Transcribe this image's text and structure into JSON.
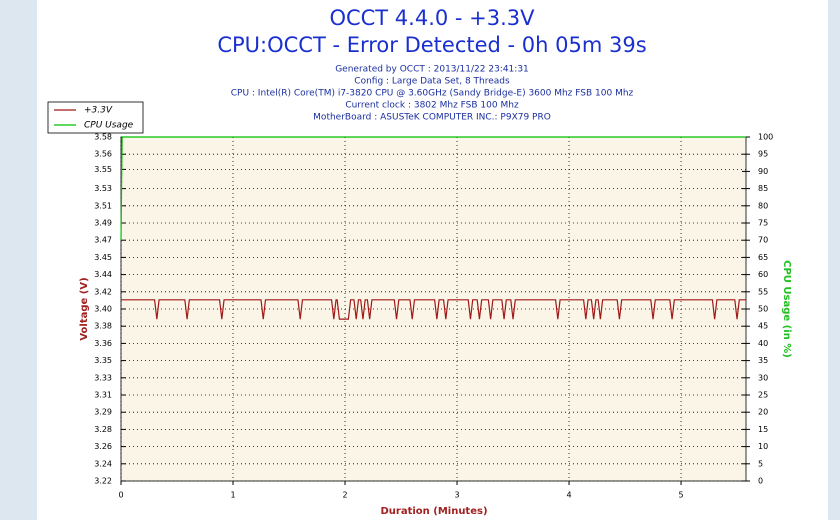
{
  "chart_data": {
    "type": "line",
    "title": "OCCT 4.4.0 - +3.3V",
    "subtitle": "CPU:OCCT - Error Detected - 0h 05m 39s",
    "details": [
      "Generated by OCCT : 2013/11/22 23:41:31",
      "Config : Large Data Set, 8 Threads",
      "CPU : Intel(R) Core(TM) i7-3820 CPU @ 3.60GHz (Sandy Bridge-E) 3600 Mhz FSB 100 Mhz",
      "Current clock : 3802 Mhz FSB 100 Mhz",
      "MotherBoard : ASUSTeK COMPUTER INC.: P9X79 PRO"
    ],
    "x_label": "Duration (Minutes)",
    "y_label": "Voltage (V)",
    "y2_label": "CPU Usage (in %)",
    "xlim": [
      0,
      5.58
    ],
    "xticks": [
      0,
      1,
      2,
      3,
      4,
      5
    ],
    "ylim": [
      3.2225,
      3.5785
    ],
    "yticks": [
      {
        "value": 3.2225,
        "label": "3.22"
      },
      {
        "value": 3.2403,
        "label": "3.24"
      },
      {
        "value": 3.2581,
        "label": "3.26"
      },
      {
        "value": 3.2759,
        "label": "3.28"
      },
      {
        "value": 3.2937,
        "label": "3.29"
      },
      {
        "value": 3.3115,
        "label": "3.31"
      },
      {
        "value": 3.3293,
        "label": "3.33"
      },
      {
        "value": 3.3471,
        "label": "3.35"
      },
      {
        "value": 3.3649,
        "label": "3.36"
      },
      {
        "value": 3.3827,
        "label": "3.38"
      },
      {
        "value": 3.4005,
        "label": "3.40"
      },
      {
        "value": 3.4183,
        "label": "3.42"
      },
      {
        "value": 3.4361,
        "label": "3.44"
      },
      {
        "value": 3.4539,
        "label": "3.45"
      },
      {
        "value": 3.4717,
        "label": "3.47"
      },
      {
        "value": 3.4895,
        "label": "3.49"
      },
      {
        "value": 3.5073,
        "label": "3.51"
      },
      {
        "value": 3.5251,
        "label": "3.53"
      },
      {
        "value": 3.545,
        "label": "3.55"
      },
      {
        "value": 3.5607,
        "label": "3.56"
      },
      {
        "value": 3.5785,
        "label": "3.58"
      }
    ],
    "y2lim": [
      0,
      100
    ],
    "y2ticks": [
      0,
      5,
      10,
      15,
      20,
      25,
      30,
      35,
      40,
      45,
      50,
      55,
      60,
      65,
      70,
      75,
      80,
      85,
      90,
      95,
      100
    ],
    "grid": true,
    "legend": "top-left",
    "series": [
      {
        "name": "+3.3V",
        "color": "#a01818",
        "x": [
          0,
          0.3,
          0.32,
          0.34,
          0.57,
          0.59,
          0.61,
          0.88,
          0.9,
          0.92,
          1.25,
          1.27,
          1.29,
          1.58,
          1.6,
          1.62,
          1.88,
          1.9,
          1.92,
          1.93,
          1.95,
          1.97,
          2.03,
          2.05,
          2.08,
          2.1,
          2.12,
          2.14,
          2.16,
          2.18,
          2.2,
          2.22,
          2.24,
          2.44,
          2.46,
          2.48,
          2.58,
          2.6,
          2.62,
          2.8,
          2.82,
          2.84,
          2.88,
          2.9,
          2.92,
          3.1,
          3.12,
          3.14,
          3.18,
          3.2,
          3.22,
          3.28,
          3.3,
          3.32,
          3.4,
          3.42,
          3.44,
          3.48,
          3.5,
          3.52,
          3.88,
          3.9,
          3.92,
          4.13,
          4.15,
          4.17,
          4.2,
          4.22,
          4.24,
          4.26,
          4.28,
          4.3,
          4.43,
          4.45,
          4.47,
          4.73,
          4.75,
          4.77,
          4.9,
          4.92,
          4.94,
          5.28,
          5.3,
          5.32,
          5.48,
          5.5,
          5.52,
          5.58
        ],
        "values": [
          3.41,
          3.41,
          3.39,
          3.41,
          3.41,
          3.39,
          3.41,
          3.41,
          3.39,
          3.41,
          3.41,
          3.39,
          3.41,
          3.41,
          3.39,
          3.41,
          3.41,
          3.39,
          3.41,
          3.41,
          3.39,
          3.39,
          3.39,
          3.41,
          3.41,
          3.39,
          3.41,
          3.41,
          3.39,
          3.41,
          3.41,
          3.39,
          3.41,
          3.41,
          3.39,
          3.41,
          3.41,
          3.39,
          3.41,
          3.41,
          3.39,
          3.41,
          3.41,
          3.39,
          3.41,
          3.41,
          3.39,
          3.41,
          3.41,
          3.39,
          3.41,
          3.41,
          3.39,
          3.41,
          3.41,
          3.39,
          3.41,
          3.41,
          3.39,
          3.41,
          3.41,
          3.39,
          3.41,
          3.41,
          3.39,
          3.41,
          3.41,
          3.39,
          3.41,
          3.41,
          3.39,
          3.41,
          3.41,
          3.39,
          3.41,
          3.41,
          3.39,
          3.41,
          3.41,
          3.39,
          3.41,
          3.41,
          3.39,
          3.41,
          3.41,
          3.39,
          3.41,
          3.41
        ]
      },
      {
        "name": "CPU Usage",
        "color": "#00c000",
        "axis": "y2",
        "x": [
          0,
          0.01,
          5.58
        ],
        "values": [
          70,
          100,
          100
        ]
      }
    ]
  }
}
